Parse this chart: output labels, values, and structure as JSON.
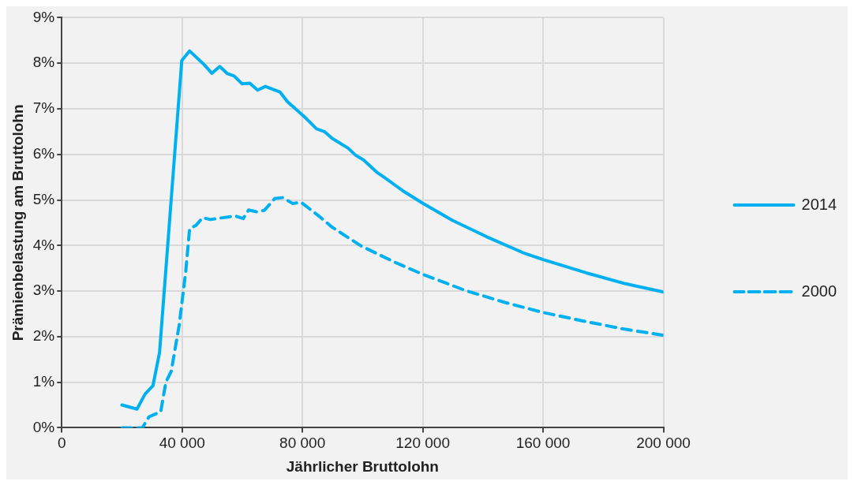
{
  "chart_data": {
    "type": "line",
    "xlabel": "Jährlicher Bruttolohn",
    "ylabel": "Prämienbelastung am Bruttolohn",
    "xlim": [
      0,
      200000
    ],
    "xticks": [
      0,
      {
        "value": 40000,
        "label": "40 000"
      },
      {
        "value": 80000,
        "label": "80 000"
      },
      {
        "value": 120000,
        "label": "120 000"
      },
      {
        "value": 160000,
        "label": "160 000"
      },
      {
        "value": 200000,
        "label": "200 000"
      }
    ],
    "ylim": [
      0,
      9
    ],
    "yticks": [
      {
        "value": 0,
        "label": "0%"
      },
      {
        "value": 1,
        "label": "1%"
      },
      {
        "value": 2,
        "label": "2%"
      },
      {
        "value": 3,
        "label": "3%"
      },
      {
        "value": 4,
        "label": "4%"
      },
      {
        "value": 5,
        "label": "5%"
      },
      {
        "value": 6,
        "label": "6%"
      },
      {
        "value": 7,
        "label": "7%"
      },
      {
        "value": 8,
        "label": "8%"
      },
      {
        "value": 9,
        "label": "9%"
      }
    ],
    "grid": true,
    "legend": "right",
    "marker": "none",
    "series": [
      {
        "name": "2014",
        "color": "#00b0f0",
        "line_style": "solid",
        "x": [
          20000,
          25000,
          27700,
          30300,
          32500,
          39900,
          42500,
          47300,
          49900,
          52500,
          55100,
          57300,
          59900,
          62500,
          65100,
          67700,
          72500,
          75100,
          77700,
          81200,
          84700,
          87300,
          89900,
          95100,
          97700,
          100300,
          104700,
          107300,
          113400,
          119900,
          129900,
          141300,
          153400,
          160000,
          174300,
          187400,
          200000
        ],
        "values": [
          0.5,
          0.41,
          0.74,
          0.92,
          1.65,
          8.06,
          8.27,
          7.97,
          7.78,
          7.93,
          7.77,
          7.72,
          7.55,
          7.56,
          7.41,
          7.49,
          7.37,
          7.15,
          7.0,
          6.79,
          6.56,
          6.5,
          6.35,
          6.14,
          5.98,
          5.88,
          5.61,
          5.49,
          5.2,
          4.93,
          4.55,
          4.19,
          3.84,
          3.69,
          3.4,
          3.16,
          2.98
        ]
      },
      {
        "name": "2000",
        "color": "#00b0f0",
        "line_style": "dashed",
        "x": [
          20000,
          26800,
          29000,
          32900,
          34600,
          36400,
          39000,
          41200,
          42500,
          44600,
          46800,
          49400,
          57700,
          60300,
          62100,
          64700,
          67300,
          70800,
          73400,
          76800,
          79500,
          85600,
          89900,
          99500,
          110800,
          119900,
          134300,
          147300,
          160000,
          174300,
          187400,
          200000
        ],
        "values": [
          0,
          0,
          0.24,
          0.35,
          1.0,
          1.24,
          2.24,
          3.42,
          4.37,
          4.44,
          4.61,
          4.57,
          4.65,
          4.59,
          4.78,
          4.74,
          4.77,
          5.03,
          5.05,
          4.92,
          4.95,
          4.64,
          4.4,
          3.99,
          3.63,
          3.37,
          3.01,
          2.75,
          2.53,
          2.33,
          2.16,
          2.03
        ]
      }
    ]
  }
}
